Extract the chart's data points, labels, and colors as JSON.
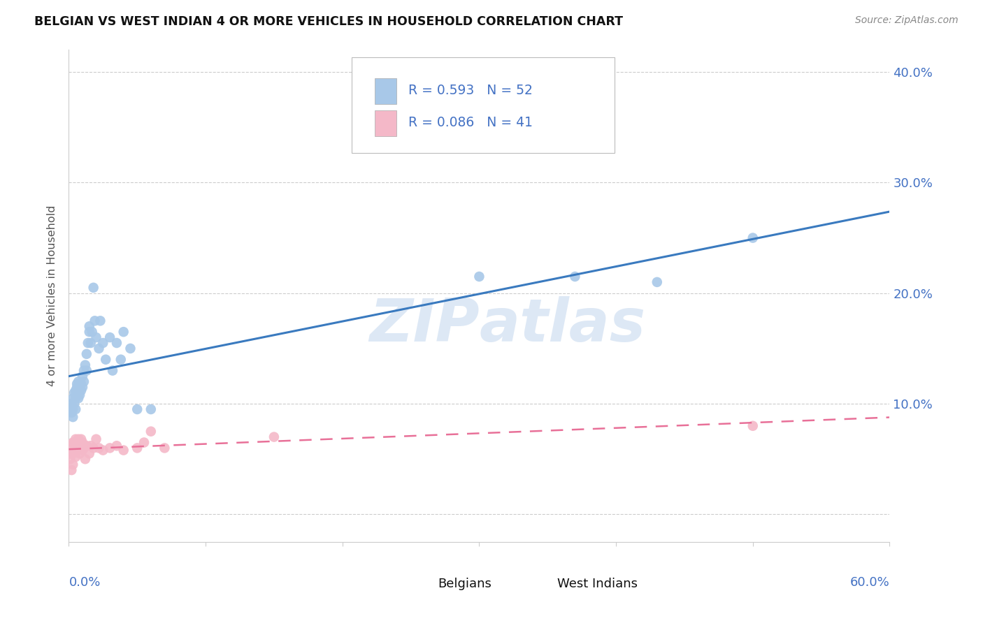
{
  "title": "BELGIAN VS WEST INDIAN 4 OR MORE VEHICLES IN HOUSEHOLD CORRELATION CHART",
  "source": "Source: ZipAtlas.com",
  "ylabel": "4 or more Vehicles in Household",
  "belgian_R": "0.593",
  "belgian_N": "52",
  "westindian_R": "0.086",
  "westindian_N": "41",
  "belgian_color": "#a8c8e8",
  "westindian_color": "#f4b8c8",
  "belgian_line_color": "#3a7abf",
  "westindian_line_color": "#e87098",
  "watermark": "ZIPatlas",
  "belgian_x": [
    0.001,
    0.002,
    0.002,
    0.003,
    0.003,
    0.003,
    0.004,
    0.004,
    0.005,
    0.005,
    0.005,
    0.006,
    0.006,
    0.006,
    0.007,
    0.007,
    0.007,
    0.008,
    0.008,
    0.009,
    0.009,
    0.01,
    0.01,
    0.011,
    0.011,
    0.012,
    0.013,
    0.013,
    0.014,
    0.015,
    0.015,
    0.016,
    0.017,
    0.018,
    0.019,
    0.02,
    0.022,
    0.023,
    0.025,
    0.027,
    0.03,
    0.032,
    0.035,
    0.038,
    0.04,
    0.045,
    0.05,
    0.06,
    0.3,
    0.37,
    0.43,
    0.5
  ],
  "belgian_y": [
    0.095,
    0.092,
    0.1,
    0.088,
    0.095,
    0.105,
    0.1,
    0.11,
    0.095,
    0.105,
    0.112,
    0.108,
    0.115,
    0.118,
    0.105,
    0.112,
    0.12,
    0.108,
    0.115,
    0.112,
    0.118,
    0.125,
    0.115,
    0.13,
    0.12,
    0.135,
    0.145,
    0.13,
    0.155,
    0.165,
    0.17,
    0.155,
    0.165,
    0.205,
    0.175,
    0.16,
    0.15,
    0.175,
    0.155,
    0.14,
    0.16,
    0.13,
    0.155,
    0.14,
    0.165,
    0.15,
    0.095,
    0.095,
    0.215,
    0.215,
    0.21,
    0.25
  ],
  "westindian_x": [
    0.001,
    0.001,
    0.002,
    0.002,
    0.002,
    0.003,
    0.003,
    0.003,
    0.004,
    0.004,
    0.005,
    0.005,
    0.005,
    0.006,
    0.006,
    0.007,
    0.007,
    0.008,
    0.008,
    0.009,
    0.009,
    0.01,
    0.01,
    0.011,
    0.012,
    0.013,
    0.015,
    0.016,
    0.018,
    0.02,
    0.022,
    0.025,
    0.03,
    0.035,
    0.04,
    0.05,
    0.055,
    0.06,
    0.07,
    0.15,
    0.5
  ],
  "westindian_y": [
    0.05,
    0.055,
    0.04,
    0.055,
    0.06,
    0.045,
    0.055,
    0.065,
    0.058,
    0.065,
    0.052,
    0.06,
    0.068,
    0.058,
    0.065,
    0.06,
    0.068,
    0.055,
    0.065,
    0.06,
    0.068,
    0.058,
    0.065,
    0.06,
    0.05,
    0.062,
    0.055,
    0.062,
    0.06,
    0.068,
    0.06,
    0.058,
    0.06,
    0.062,
    0.058,
    0.06,
    0.065,
    0.075,
    0.06,
    0.07,
    0.08
  ],
  "xlim": [
    0.0,
    0.6
  ],
  "ylim": [
    -0.025,
    0.42
  ],
  "figsize": [
    14.06,
    8.92
  ],
  "dpi": 100
}
